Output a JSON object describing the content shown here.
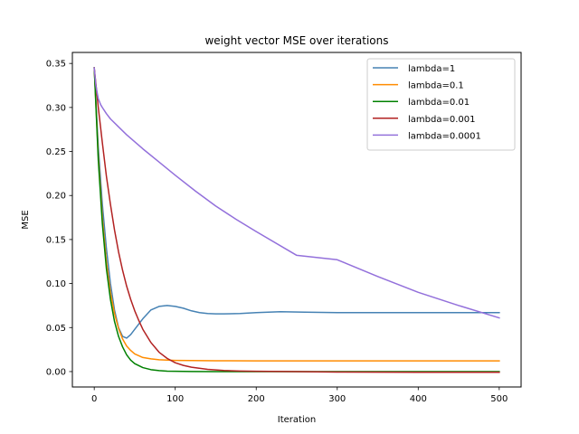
{
  "chart_data": {
    "type": "line",
    "title": "weight vector MSE over iterations",
    "xlabel": "Iteration",
    "ylabel": "MSE",
    "xlim": [
      -27,
      527
    ],
    "ylim": [
      -0.0175,
      0.3625
    ],
    "xticks": [
      0,
      100,
      200,
      300,
      400,
      500
    ],
    "yticks": [
      0.0,
      0.05,
      0.1,
      0.15,
      0.2,
      0.25,
      0.3,
      0.35
    ],
    "ytick_labels": [
      "0.00",
      "0.05",
      "0.10",
      "0.15",
      "0.20",
      "0.25",
      "0.30",
      "0.35"
    ],
    "grid": false,
    "legend_position": "upper-right",
    "series": [
      {
        "name": "lambda=1",
        "color": "#4682b4",
        "x": [
          0,
          5,
          10,
          15,
          20,
          25,
          30,
          35,
          40,
          45,
          50,
          60,
          70,
          80,
          90,
          100,
          110,
          120,
          130,
          140,
          150,
          160,
          180,
          200,
          230,
          260,
          300,
          350,
          400,
          450,
          500
        ],
        "y": [
          0.345,
          0.255,
          0.19,
          0.14,
          0.1,
          0.07,
          0.05,
          0.04,
          0.038,
          0.042,
          0.048,
          0.06,
          0.07,
          0.074,
          0.075,
          0.074,
          0.072,
          0.069,
          0.067,
          0.066,
          0.0655,
          0.0655,
          0.066,
          0.067,
          0.068,
          0.0675,
          0.067,
          0.067,
          0.067,
          0.067,
          0.067
        ]
      },
      {
        "name": "lambda=0.1",
        "color": "#ff8c00",
        "x": [
          0,
          5,
          10,
          15,
          20,
          25,
          30,
          35,
          40,
          45,
          50,
          60,
          70,
          80,
          90,
          100,
          120,
          150,
          200,
          250,
          300,
          400,
          500
        ],
        "y": [
          0.345,
          0.245,
          0.175,
          0.125,
          0.09,
          0.066,
          0.049,
          0.037,
          0.029,
          0.024,
          0.02,
          0.016,
          0.0145,
          0.0135,
          0.013,
          0.0127,
          0.0125,
          0.0123,
          0.0122,
          0.0122,
          0.0122,
          0.0122,
          0.0122
        ]
      },
      {
        "name": "lambda=0.01",
        "color": "#008000",
        "x": [
          0,
          5,
          10,
          15,
          20,
          25,
          30,
          35,
          40,
          45,
          50,
          60,
          70,
          80,
          90,
          100,
          120,
          150,
          200,
          300,
          400,
          500
        ],
        "y": [
          0.345,
          0.24,
          0.168,
          0.117,
          0.082,
          0.057,
          0.04,
          0.028,
          0.019,
          0.013,
          0.009,
          0.0045,
          0.0022,
          0.0011,
          0.0005,
          0.0003,
          0.0001,
          0.0,
          0.0,
          0.0,
          0.0,
          0.0
        ]
      },
      {
        "name": "lambda=0.001",
        "color": "#b22222",
        "x": [
          0,
          5,
          10,
          15,
          20,
          25,
          30,
          35,
          40,
          45,
          50,
          55,
          60,
          70,
          80,
          90,
          100,
          110,
          120,
          140,
          160,
          180,
          200,
          250,
          300,
          400,
          500
        ],
        "y": [
          0.345,
          0.3,
          0.26,
          0.222,
          0.19,
          0.161,
          0.136,
          0.115,
          0.097,
          0.082,
          0.069,
          0.058,
          0.048,
          0.033,
          0.022,
          0.015,
          0.01,
          0.007,
          0.005,
          0.0025,
          0.0012,
          0.0006,
          0.0003,
          0.0,
          -0.0005,
          -0.0008,
          -0.0008
        ]
      },
      {
        "name": "lambda=0.0001",
        "color": "#9370db",
        "x": [
          0,
          2,
          5,
          8,
          10,
          15,
          20,
          30,
          40,
          50,
          60,
          80,
          100,
          125,
          150,
          175,
          200,
          250,
          300,
          350,
          400,
          450,
          500
        ],
        "y": [
          0.345,
          0.325,
          0.31,
          0.303,
          0.3,
          0.293,
          0.287,
          0.278,
          0.269,
          0.261,
          0.253,
          0.238,
          0.223,
          0.205,
          0.188,
          0.173,
          0.159,
          0.132,
          0.127,
          0.108,
          0.09,
          0.075,
          0.061
        ]
      }
    ]
  }
}
